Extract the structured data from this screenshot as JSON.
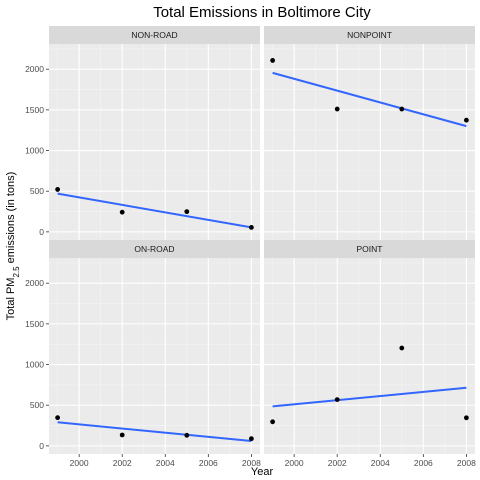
{
  "chart_data": {
    "type": "scatter",
    "title": "Total Emissions in Boltimore City",
    "xlabel": "Year",
    "ylabel": {
      "prefix": "Total PM",
      "subscript": "2.5",
      "suffix": " emissions (in tons)"
    },
    "xlim": [
      1998.6,
      2008.4
    ],
    "ylim": [
      -100,
      2310
    ],
    "x_ticks": [
      2000,
      2002,
      2004,
      2006,
      2008
    ],
    "y_ticks": [
      0,
      500,
      1000,
      1500,
      2000
    ],
    "grid": true,
    "trend_line": "linear",
    "colors": {
      "panel_bg": "#ebebeb",
      "grid_major": "#ffffff",
      "strip_bg": "#d9d9d9",
      "points": "#000000",
      "trend": "#3366ff"
    },
    "panels": [
      {
        "label": "NON-ROAD",
        "x": [
          1999,
          2002,
          2005,
          2008
        ],
        "y": [
          522,
          242,
          249,
          55
        ],
        "trend": [
          [
            1999,
            470
          ],
          [
            2008,
            55
          ]
        ]
      },
      {
        "label": "NONPOINT",
        "x": [
          1999,
          2002,
          2005,
          2008
        ],
        "y": [
          2108,
          1510,
          1510,
          1373
        ],
        "trend": [
          [
            1999,
            1955
          ],
          [
            2008,
            1300
          ]
        ]
      },
      {
        "label": "ON-ROAD",
        "x": [
          1999,
          2002,
          2005,
          2008
        ],
        "y": [
          347,
          134,
          130,
          88
        ],
        "trend": [
          [
            1999,
            290
          ],
          [
            2008,
            60
          ]
        ]
      },
      {
        "label": "POINT",
        "x": [
          1999,
          2002,
          2005,
          2008
        ],
        "y": [
          296,
          569,
          1203,
          345
        ],
        "trend": [
          [
            1999,
            485
          ],
          [
            2008,
            715
          ]
        ]
      }
    ]
  }
}
